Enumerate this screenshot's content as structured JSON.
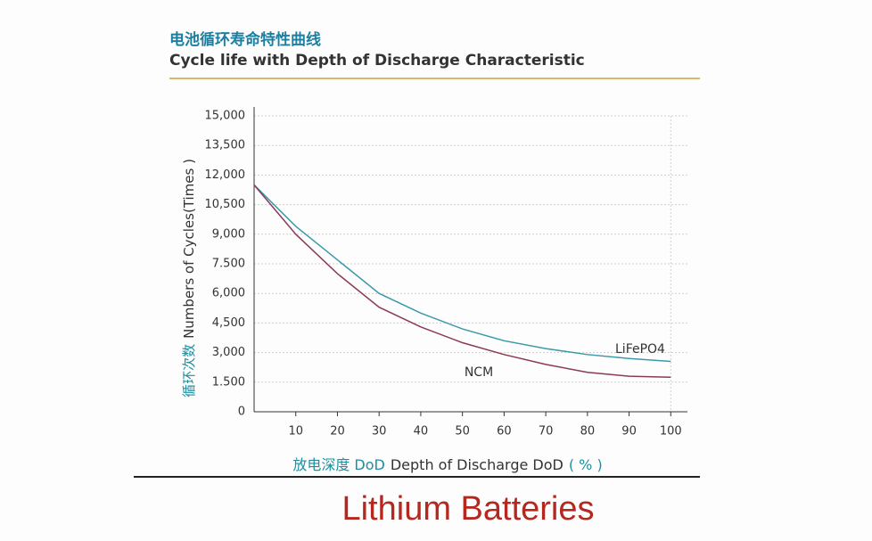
{
  "chart_data": {
    "type": "line",
    "title": "电池循环寿命特性曲线",
    "subtitle": "Cycle life with Depth of Discharge Characteristic",
    "ylabel": [
      "循环次数",
      "Numbers of Cycles(Times )"
    ],
    "xlabel": [
      "放电深度 DoD",
      "Depth of Discharge DoD",
      "( % )"
    ],
    "caption": "Lithium Batteries",
    "x": [
      0,
      10,
      20,
      30,
      40,
      50,
      60,
      70,
      80,
      90,
      100
    ],
    "series": [
      {
        "name": "LiFePO4",
        "color": "#3a9aa8",
        "values": [
          11500,
          9400,
          7700,
          6000,
          5000,
          4200,
          3600,
          3200,
          2900,
          2700,
          2550
        ]
      },
      {
        "name": "NCM",
        "color": "#8b3a55",
        "values": [
          11500,
          9000,
          7000,
          5300,
          4300,
          3500,
          2900,
          2400,
          2000,
          1800,
          1750
        ]
      }
    ],
    "xlim": [
      0,
      104
    ],
    "xticks": [
      10,
      20,
      30,
      40,
      50,
      60,
      70,
      80,
      90,
      100
    ],
    "ylim": [
      0,
      15000
    ],
    "yticks": [
      0,
      {
        "value": 1500,
        "label": "1.500"
      },
      {
        "value": 3000,
        "label": "3,000"
      },
      {
        "value": 4500,
        "label": "4,500"
      },
      {
        "value": 6000,
        "label": "6,000"
      },
      {
        "value": 7500,
        "label": "7.500"
      },
      {
        "value": 9000,
        "label": "9,000"
      },
      {
        "value": 10500,
        "label": "10,500"
      },
      {
        "value": 12000,
        "label": "12,000"
      },
      {
        "value": 13500,
        "label": "13,500"
      },
      {
        "value": 15000,
        "label": "15,000"
      }
    ],
    "grid": true
  }
}
